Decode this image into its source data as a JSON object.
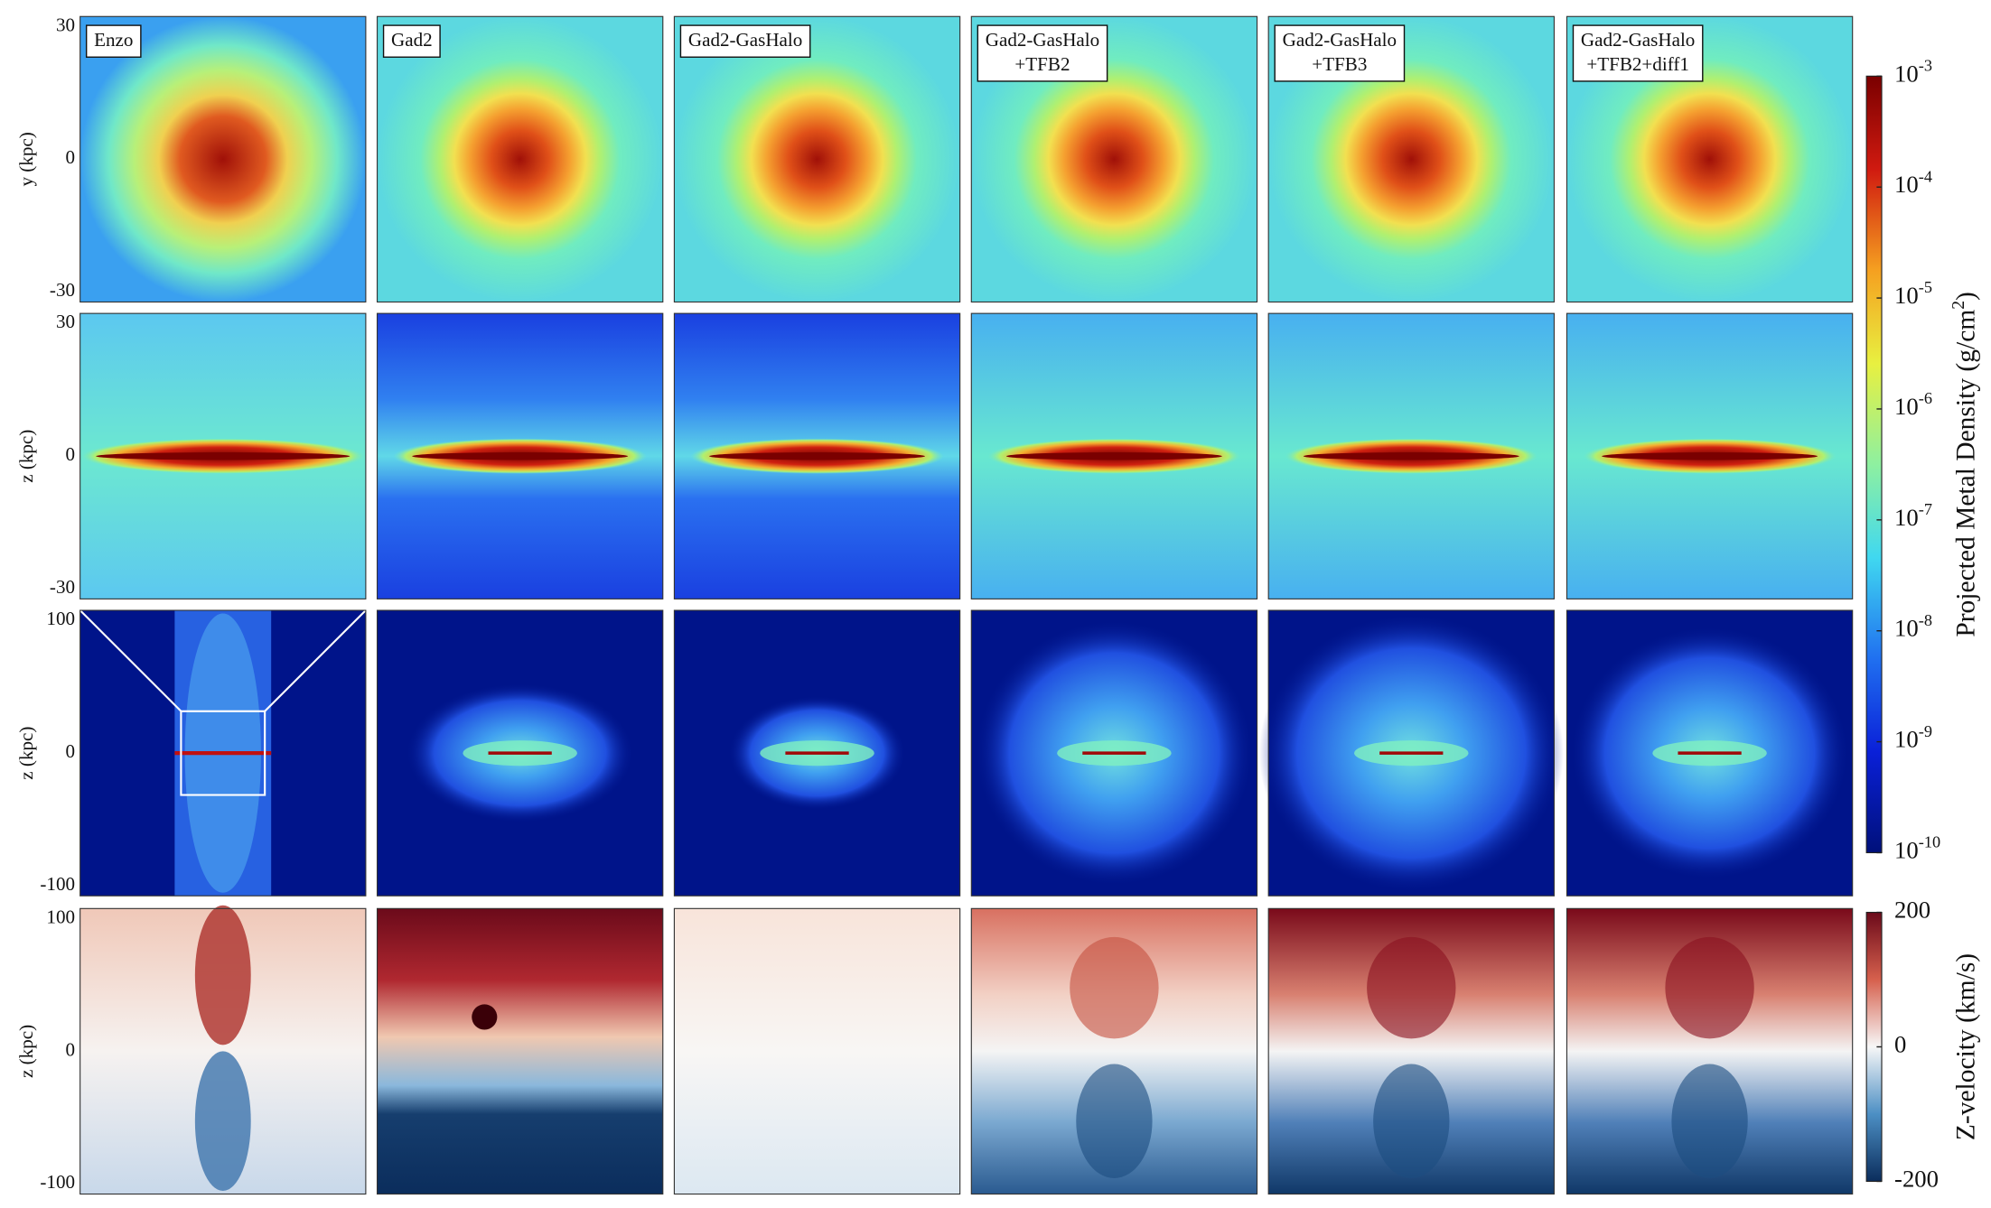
{
  "figure": {
    "panel_labels": [
      [
        "Enzo"
      ],
      [
        "Gad2"
      ],
      [
        "Gad2-GasHalo"
      ],
      [
        "Gad2-GasHalo",
        "+TFB2"
      ],
      [
        "Gad2-GasHalo",
        "+TFB3"
      ],
      [
        "Gad2-GasHalo",
        "+TFB2+diff1"
      ]
    ],
    "rows": [
      {
        "ylabel": "y (kpc)",
        "yticks": [
          30,
          0,
          -30
        ]
      },
      {
        "ylabel": "z (kpc)",
        "yticks": [
          30,
          0,
          -30
        ]
      },
      {
        "ylabel": "z (kpc)",
        "yticks": [
          100,
          0,
          -100
        ]
      },
      {
        "ylabel": "z (kpc)",
        "yticks": [
          100,
          0,
          -100
        ]
      }
    ],
    "colorbars": [
      {
        "label": "Projected Metal Density (g/cm",
        "label_sup": "2",
        "label_end": ")",
        "ticks": [
          {
            "base": "10",
            "exp": "-3"
          },
          {
            "base": "10",
            "exp": "-4"
          },
          {
            "base": "10",
            "exp": "-5"
          },
          {
            "base": "10",
            "exp": "-6"
          },
          {
            "base": "10",
            "exp": "-7"
          },
          {
            "base": "10",
            "exp": "-8"
          },
          {
            "base": "10",
            "exp": "-9"
          },
          {
            "base": "10",
            "exp": "-10"
          }
        ]
      },
      {
        "label": "Z-velocity (km/s)",
        "ticks": [
          200,
          0,
          -200
        ]
      }
    ]
  }
}
